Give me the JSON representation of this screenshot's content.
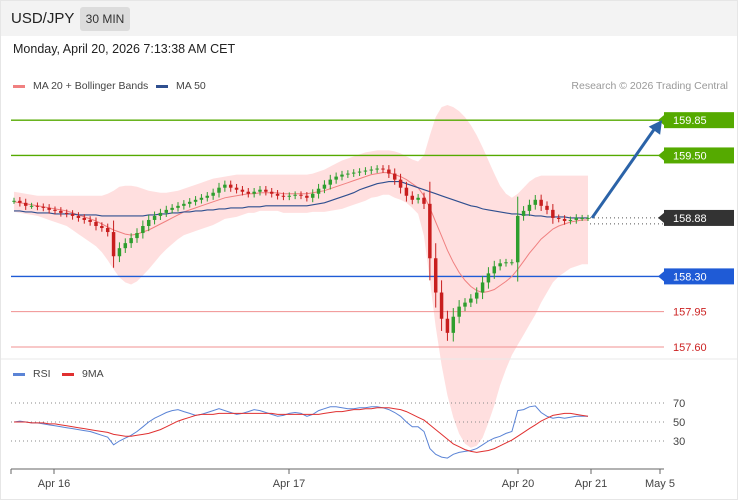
{
  "header": {
    "symbol": "USD/JPY",
    "timeframe": "30 MIN"
  },
  "datetime": "Monday, April 20, 2026 7:13:38 AM CET",
  "legend": {
    "ma20": "MA 20 + Bollinger Bands",
    "ma50": "MA 50",
    "credit": "Research © 2026 Trading Central"
  },
  "rsi_legend": {
    "rsi": "RSI",
    "ma": "9MA"
  },
  "colors": {
    "ma20": "#f08080",
    "ma50": "#2f4f8f",
    "bull": "#2e9e2e",
    "bear": "#c81e1e",
    "resistance": "#55aa00",
    "pivot": "#1f5bd6",
    "support": "#f09090",
    "arrow": "#2b63a8",
    "rsi": "#5b84d6",
    "rsi_ma": "#e03030",
    "band": "#ffd9d9"
  },
  "chart_data": [
    {
      "type": "candlestick",
      "x_ticks": [
        "Apr 16",
        "Apr 17",
        "Apr 20",
        "Apr 21",
        "May 5"
      ],
      "price_levels": [
        {
          "value": 159.85,
          "label": "159.85",
          "kind": "resistance"
        },
        {
          "value": 159.5,
          "label": "159.50",
          "kind": "resistance"
        },
        {
          "value": 158.88,
          "label": "158.88",
          "kind": "last"
        },
        {
          "value": 158.3,
          "label": "158.30",
          "kind": "pivot"
        },
        {
          "value": 157.95,
          "label": "157.95",
          "kind": "support"
        },
        {
          "value": 157.6,
          "label": "157.60",
          "kind": "support"
        }
      ],
      "close_series": [
        159.05,
        159.03,
        159.0,
        159.0,
        158.99,
        158.98,
        158.96,
        158.95,
        158.93,
        158.92,
        158.9,
        158.88,
        158.86,
        158.84,
        158.8,
        158.78,
        158.74,
        158.5,
        158.58,
        158.63,
        158.68,
        158.73,
        158.8,
        158.86,
        158.9,
        158.93,
        158.96,
        158.98,
        159.0,
        159.02,
        159.04,
        159.06,
        159.08,
        159.1,
        159.13,
        159.18,
        159.21,
        159.18,
        159.16,
        159.14,
        159.12,
        159.14,
        159.16,
        159.14,
        159.12,
        159.1,
        159.09,
        159.1,
        159.11,
        159.1,
        159.08,
        159.12,
        159.17,
        159.21,
        159.26,
        159.29,
        159.31,
        159.32,
        159.33,
        159.34,
        159.35,
        159.36,
        159.37,
        159.36,
        159.32,
        159.26,
        159.18,
        159.1,
        159.06,
        159.08,
        159.02,
        158.48,
        158.14,
        157.88,
        157.74,
        157.9,
        158.0,
        158.04,
        158.08,
        158.14,
        158.24,
        158.33,
        158.4,
        158.43,
        158.44,
        158.44,
        158.9,
        158.95,
        159.01,
        159.06,
        159.0,
        158.96,
        158.88,
        158.87,
        158.85,
        158.86,
        158.88,
        158.88,
        158.88
      ],
      "ma20": [
        159.04,
        159.03,
        159.02,
        159.01,
        159.0,
        158.99,
        158.98,
        158.97,
        158.96,
        158.95,
        158.93,
        158.91,
        158.89,
        158.87,
        158.85,
        158.82,
        158.79,
        158.76,
        158.74,
        158.72,
        158.71,
        158.72,
        158.74,
        158.76,
        158.79,
        158.82,
        158.85,
        158.88,
        158.91,
        158.94,
        158.96,
        158.98,
        159.0,
        159.02,
        159.04,
        159.06,
        159.08,
        159.09,
        159.1,
        159.11,
        159.12,
        159.12,
        159.13,
        159.13,
        159.13,
        159.13,
        159.12,
        159.12,
        159.12,
        159.12,
        159.12,
        159.13,
        159.14,
        159.15,
        159.17,
        159.19,
        159.21,
        159.23,
        159.25,
        159.27,
        159.29,
        159.31,
        159.32,
        159.33,
        159.33,
        159.31,
        159.29,
        159.26,
        159.22,
        159.18,
        159.1,
        158.98,
        158.84,
        158.7,
        158.56,
        158.44,
        158.34,
        158.26,
        158.2,
        158.16,
        158.14,
        158.15,
        158.17,
        158.21,
        158.25,
        158.3,
        158.37,
        158.45,
        158.53,
        158.6,
        158.67,
        158.72,
        158.77,
        158.8,
        158.82,
        158.84,
        158.85,
        158.86,
        158.86
      ],
      "ma50": [
        158.95,
        158.95,
        158.94,
        158.94,
        158.93,
        158.93,
        158.93,
        158.92,
        158.92,
        158.92,
        158.92,
        158.91,
        158.91,
        158.91,
        158.91,
        158.9,
        158.9,
        158.9,
        158.9,
        158.9,
        158.9,
        158.9,
        158.9,
        158.91,
        158.91,
        158.92,
        158.92,
        158.93,
        158.93,
        158.94,
        158.94,
        158.95,
        158.95,
        158.96,
        158.96,
        158.97,
        158.97,
        158.98,
        158.98,
        158.98,
        158.99,
        158.99,
        158.99,
        159.0,
        159.0,
        159.0,
        159.0,
        159.0,
        159.0,
        159.0,
        159.0,
        159.01,
        159.02,
        159.03,
        159.05,
        159.07,
        159.09,
        159.11,
        159.13,
        159.16,
        159.18,
        159.2,
        159.22,
        159.23,
        159.24,
        159.24,
        159.24,
        159.22,
        159.2,
        159.18,
        159.16,
        159.14,
        159.12,
        159.1,
        159.08,
        159.06,
        159.04,
        159.02,
        159.0,
        158.99,
        158.97,
        158.96,
        158.95,
        158.94,
        158.93,
        158.92,
        158.92,
        158.91,
        158.91,
        158.9,
        158.9,
        158.89,
        158.89,
        158.89,
        158.89,
        158.88,
        158.88,
        158.88,
        158.88
      ],
      "bollinger_upper": [
        159.14,
        159.13,
        159.12,
        159.11,
        159.1,
        159.1,
        159.1,
        159.1,
        159.1,
        159.1,
        159.1,
        159.1,
        159.1,
        159.1,
        159.1,
        159.1,
        159.12,
        159.15,
        159.19,
        159.2,
        159.2,
        159.19,
        159.17,
        159.15,
        159.14,
        159.13,
        159.13,
        159.14,
        159.15,
        159.17,
        159.19,
        159.21,
        159.23,
        159.25,
        159.27,
        159.28,
        159.29,
        159.3,
        159.31,
        159.31,
        159.31,
        159.31,
        159.31,
        159.31,
        159.31,
        159.31,
        159.31,
        159.31,
        159.31,
        159.31,
        159.31,
        159.32,
        159.34,
        159.36,
        159.39,
        159.42,
        159.45,
        159.47,
        159.49,
        159.51,
        159.53,
        159.54,
        159.55,
        159.55,
        159.55,
        159.54,
        159.52,
        159.49,
        159.46,
        159.44,
        159.5,
        159.7,
        159.88,
        159.98,
        160.0,
        159.98,
        159.94,
        159.88,
        159.8,
        159.7,
        159.58,
        159.45,
        159.32,
        159.2,
        159.12,
        159.08,
        159.12,
        159.18,
        159.24,
        159.28,
        159.3,
        159.3,
        159.3,
        159.3,
        159.3,
        159.3,
        159.3,
        159.3,
        159.3
      ],
      "bollinger_lower": [
        158.94,
        158.93,
        158.92,
        158.91,
        158.9,
        158.88,
        158.86,
        158.84,
        158.82,
        158.8,
        158.76,
        158.72,
        158.68,
        158.64,
        158.6,
        158.54,
        158.46,
        158.37,
        158.29,
        158.24,
        158.22,
        158.25,
        158.31,
        158.37,
        158.44,
        158.51,
        158.57,
        158.62,
        158.67,
        158.71,
        158.73,
        158.75,
        158.77,
        158.79,
        158.81,
        158.84,
        158.87,
        158.88,
        158.89,
        158.91,
        158.93,
        158.93,
        158.95,
        158.95,
        158.95,
        158.95,
        158.93,
        158.93,
        158.93,
        158.93,
        158.93,
        158.94,
        158.94,
        158.94,
        158.95,
        158.96,
        158.97,
        158.99,
        159.01,
        159.03,
        159.05,
        159.08,
        159.09,
        159.11,
        159.11,
        159.08,
        159.06,
        159.03,
        158.98,
        158.92,
        158.7,
        158.26,
        157.8,
        157.42,
        157.12,
        156.9,
        156.74,
        156.64,
        156.6,
        156.62,
        156.7,
        156.85,
        157.02,
        157.22,
        157.38,
        157.52,
        157.62,
        157.72,
        157.82,
        157.92,
        158.04,
        158.14,
        158.24,
        158.3,
        158.34,
        158.38,
        158.4,
        158.42,
        158.42
      ],
      "forecast_arrow": {
        "from": 158.88,
        "to": 159.85
      },
      "y_range": [
        157.55,
        160.05
      ]
    },
    {
      "type": "line",
      "name": "RSI",
      "y_ticks": [
        70,
        50,
        30
      ],
      "y_range": [
        10,
        90
      ],
      "rsi": [
        50,
        51,
        50,
        49,
        49,
        48,
        47,
        46,
        45,
        44,
        43,
        42,
        41,
        40,
        38,
        36,
        34,
        26,
        30,
        33,
        36,
        40,
        45,
        50,
        54,
        57,
        60,
        62,
        63,
        61,
        59,
        57,
        58,
        60,
        62,
        64,
        62,
        60,
        58,
        59,
        61,
        63,
        62,
        60,
        58,
        56,
        57,
        59,
        60,
        59,
        56,
        58,
        62,
        64,
        66,
        66,
        65,
        64,
        64,
        65,
        65,
        66,
        66,
        65,
        63,
        60,
        56,
        50,
        45,
        45,
        40,
        22,
        16,
        13,
        12,
        16,
        18,
        19,
        20,
        22,
        26,
        30,
        33,
        35,
        38,
        40,
        62,
        63,
        66,
        67,
        60,
        56,
        54,
        55,
        54,
        55,
        56,
        56,
        56
      ],
      "rsi_ma": [
        50,
        50,
        50,
        49,
        49,
        49,
        48,
        48,
        47,
        46,
        45,
        44,
        43,
        42,
        41,
        40,
        39,
        37,
        36,
        35,
        35,
        36,
        37,
        38,
        40,
        42,
        45,
        48,
        51,
        53,
        55,
        57,
        58,
        58,
        58,
        59,
        59,
        59,
        59,
        59,
        59,
        59,
        59,
        59,
        59,
        58,
        58,
        58,
        58,
        58,
        58,
        58,
        58,
        59,
        60,
        61,
        61,
        62,
        63,
        63,
        64,
        64,
        65,
        65,
        65,
        64,
        63,
        61,
        58,
        55,
        52,
        47,
        42,
        37,
        32,
        27,
        24,
        21,
        19,
        18,
        19,
        20,
        22,
        25,
        28,
        31,
        35,
        39,
        43,
        47,
        51,
        54,
        57,
        58,
        59,
        59,
        58,
        57,
        56
      ]
    }
  ]
}
